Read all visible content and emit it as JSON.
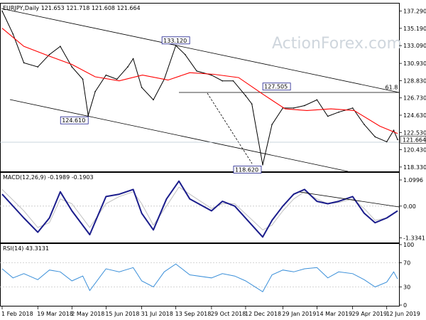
{
  "chart_data": [
    {
      "type": "line",
      "title": "EURJPY,Daily  121.653  121.718  121.608  121.664",
      "watermark": "ActionForex.com",
      "y_tick_labels": [
        "137.290",
        "135.190",
        "133.090",
        "130.930",
        "128.830",
        "126.730",
        "124.630",
        "122.530",
        "120.430",
        "118.330"
      ],
      "ylim": [
        117.8,
        138.2
      ],
      "last_price_label": "121.664",
      "last_price": 121.664,
      "annotations": [
        {
          "text": "133.120",
          "x": "13 Sep 2018",
          "y": 133.12
        },
        {
          "text": "124.610",
          "x": "23 May 2018",
          "y": 124.61
        },
        {
          "text": "127.505",
          "x": "21 Jan 2019",
          "y": 127.505
        },
        {
          "text": "118.620",
          "x": "3 Jan 2019",
          "y": 118.62
        },
        {
          "text": "61.8",
          "x": "21 Jun 2019",
          "y": 127.6
        }
      ],
      "series": [
        {
          "color": "#000000",
          "x": [
            "1 Feb 2018",
            "15 Feb 2018",
            "1 Mar 2018",
            "19 Mar 2018",
            "3 Apr 2018",
            "17 Apr 2018",
            "2 May 2018",
            "16 May 2018",
            "23 May 2018",
            "1 Jun 2018",
            "15 Jun 2018",
            "29 Jun 2018",
            "13 Jul 2018",
            "20 Jul 2018",
            "31 Jul 2018",
            "15 Aug 2018",
            "29 Aug 2018",
            "13 Sep 2018",
            "25 Sep 2018",
            "10 Oct 2018",
            "29 Oct 2018",
            "12 Nov 2018",
            "26 Nov 2018",
            "12 Dec 2018",
            "20 Dec 2018",
            "3 Jan 2019",
            "15 Jan 2019",
            "29 Jan 2019",
            "12 Feb 2019",
            "26 Feb 2019",
            "14 Mar 2019",
            "28 Mar 2019",
            "11 Apr 2019",
            "29 Apr 2019",
            "14 May 2019",
            "28 May 2019",
            "12 Jun 2019",
            "21 Jun 2019",
            "26 Jun 2019"
          ],
          "values": [
            137.3,
            134.5,
            131.0,
            130.5,
            132.0,
            133.0,
            130.5,
            129.0,
            124.6,
            127.5,
            129.5,
            129.0,
            130.5,
            131.5,
            128.0,
            126.5,
            129.0,
            133.1,
            132.0,
            130.0,
            129.5,
            128.8,
            128.8,
            127.0,
            126.0,
            118.6,
            123.5,
            125.5,
            125.5,
            125.8,
            126.5,
            124.5,
            125.0,
            125.5,
            123.5,
            122.0,
            121.4,
            122.8,
            121.66
          ]
        },
        {
          "color": "#ff0000",
          "x": [
            "1 Feb 2018",
            "1 Mar 2018",
            "3 Apr 2018",
            "2 May 2018",
            "1 Jun 2018",
            "2 Jul 2018",
            "1 Aug 2018",
            "3 Sep 2018",
            "1 Oct 2018",
            "1 Nov 2018",
            "3 Dec 2018",
            "3 Jan 2019",
            "1 Feb 2019",
            "1 Mar 2019",
            "1 Apr 2019",
            "1 May 2019",
            "3 Jun 2019",
            "26 Jun 2019"
          ],
          "values": [
            135.2,
            133.0,
            131.8,
            130.8,
            129.3,
            128.8,
            129.5,
            128.9,
            129.8,
            129.6,
            129.2,
            127.2,
            125.4,
            125.2,
            125.4,
            125.2,
            123.3,
            122.4
          ]
        }
      ]
    },
    {
      "type": "line",
      "title": "MACD(12,26,9) -0.1989 -0.1903",
      "y_tick_labels": [
        "1.0996",
        "0.00",
        "-1.3341"
      ],
      "ylim": [
        -1.5,
        1.25
      ],
      "series": [
        {
          "color": "#1b1d8c",
          "x": [
            "1 Feb 2018",
            "1 Mar 2018",
            "19 Mar 2018",
            "3 Apr 2018",
            "17 Apr 2018",
            "2 May 2018",
            "25 May 2018",
            "15 Jun 2018",
            "2 Jul 2018",
            "20 Jul 2018",
            "31 Jul 2018",
            "15 Aug 2018",
            "1 Sep 2018",
            "17 Sep 2018",
            "1 Oct 2018",
            "29 Oct 2018",
            "12 Nov 2018",
            "28 Nov 2018",
            "3 Jan 2019",
            "15 Jan 2019",
            "29 Jan 2019",
            "12 Feb 2019",
            "26 Feb 2019",
            "14 Mar 2019",
            "28 Mar 2019",
            "11 Apr 2019",
            "29 Apr 2019",
            "14 May 2019",
            "28 May 2019",
            "12 Jun 2019",
            "26 Jun 2019"
          ],
          "values": [
            0.5,
            -0.5,
            -1.1,
            -0.5,
            0.6,
            -0.2,
            -1.2,
            0.4,
            0.5,
            0.7,
            -0.3,
            -1.0,
            0.3,
            1.05,
            0.3,
            -0.2,
            0.2,
            0.0,
            -1.3,
            -0.6,
            0.0,
            0.5,
            0.7,
            0.2,
            0.1,
            0.2,
            0.4,
            -0.3,
            -0.7,
            -0.5,
            -0.2
          ]
        },
        {
          "color": "#c0c0c0",
          "x": [
            "1 Feb 2018",
            "1 Mar 2018",
            "19 Mar 2018",
            "3 Apr 2018",
            "17 Apr 2018",
            "2 May 2018",
            "25 May 2018",
            "15 Jun 2018",
            "2 Jul 2018",
            "20 Jul 2018",
            "31 Jul 2018",
            "15 Aug 2018",
            "1 Sep 2018",
            "17 Sep 2018",
            "1 Oct 2018",
            "29 Oct 2018",
            "12 Nov 2018",
            "28 Nov 2018",
            "3 Jan 2019",
            "15 Jan 2019",
            "29 Jan 2019",
            "12 Feb 2019",
            "26 Feb 2019",
            "14 Mar 2019",
            "28 Mar 2019",
            "11 Apr 2019",
            "29 Apr 2019",
            "14 May 2019",
            "28 May 2019",
            "12 Jun 2019",
            "26 Jun 2019"
          ],
          "values": [
            0.7,
            -0.2,
            -0.9,
            -0.7,
            0.3,
            0.1,
            -0.9,
            0.1,
            0.4,
            0.6,
            0.1,
            -0.8,
            0.0,
            0.8,
            0.5,
            -0.1,
            0.1,
            0.1,
            -1.0,
            -0.8,
            -0.2,
            0.3,
            0.6,
            0.3,
            0.1,
            0.15,
            0.3,
            -0.1,
            -0.6,
            -0.5,
            -0.19
          ]
        }
      ]
    },
    {
      "type": "line",
      "title": "RSI(14) 43.3131",
      "y_tick_labels": [
        "100",
        "70",
        "30",
        "0"
      ],
      "ylim": [
        0,
        100
      ],
      "series": [
        {
          "color": "#3a8fd9",
          "x": [
            "1 Feb 2018",
            "15 Feb 2018",
            "1 Mar 2018",
            "19 Mar 2018",
            "3 Apr 2018",
            "17 Apr 2018",
            "2 May 2018",
            "16 May 2018",
            "25 May 2018",
            "15 Jun 2018",
            "2 Jul 2018",
            "20 Jul 2018",
            "31 Jul 2018",
            "15 Aug 2018",
            "29 Aug 2018",
            "13 Sep 2018",
            "1 Oct 2018",
            "29 Oct 2018",
            "12 Nov 2018",
            "28 Nov 2018",
            "12 Dec 2018",
            "3 Jan 2019",
            "15 Jan 2019",
            "29 Jan 2019",
            "12 Feb 2019",
            "26 Feb 2019",
            "14 Mar 2019",
            "28 Mar 2019",
            "11 Apr 2019",
            "29 Apr 2019",
            "14 May 2019",
            "28 May 2019",
            "12 Jun 2019",
            "21 Jun 2019",
            "26 Jun 2019"
          ],
          "values": [
            60,
            45,
            52,
            42,
            58,
            55,
            40,
            48,
            24,
            60,
            55,
            62,
            40,
            30,
            55,
            68,
            50,
            45,
            52,
            48,
            40,
            22,
            50,
            58,
            55,
            60,
            62,
            45,
            55,
            52,
            42,
            30,
            38,
            55,
            43.3
          ]
        }
      ]
    }
  ],
  "x_tick_labels": [
    "1 Feb 2018",
    "19 Mar 2018",
    "2 May 2018",
    "15 Jun 2018",
    "31 Jul 2018",
    "13 Sep 2018",
    "29 Oct 2018",
    "12 Dec 2018",
    "29 Jan 2019",
    "14 Mar 2019",
    "29 Apr 2019",
    "12 Jun 2019"
  ],
  "colors": {
    "price": "#000000",
    "ma": "#ff0000",
    "channel": "#000000",
    "label_box": "#1b1d8c",
    "macd": "#1b1d8c",
    "signal": "#c0c0c0",
    "rsi": "#3a8fd9",
    "grid": "#c8c8c8"
  }
}
